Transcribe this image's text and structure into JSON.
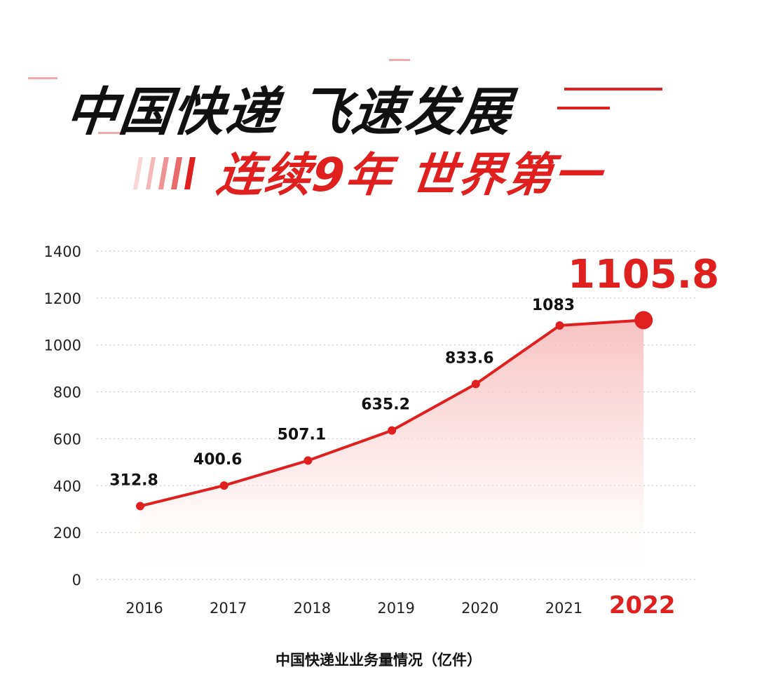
{
  "header": {
    "title": "中国快递 飞速发展",
    "subtitle": "连续9年 世界第一"
  },
  "colors": {
    "accent": "#e0201f",
    "text": "#111111",
    "area_top": "#f7c4c4",
    "grid": "#cfcfcf"
  },
  "chart_data": {
    "type": "area",
    "categories": [
      "2016",
      "2017",
      "2018",
      "2019",
      "2020",
      "2021",
      "2022"
    ],
    "series": [
      {
        "values": [
          312.8,
          400.6,
          507.1,
          635.2,
          833.6,
          1083,
          1105.8
        ]
      }
    ],
    "value_labels": [
      "312.8",
      "400.6",
      "507.1",
      "635.2",
      "833.6",
      "1083",
      "1105.8"
    ],
    "highlight_category": "2022",
    "y_ticks": [
      "0",
      "200",
      "400",
      "600",
      "800",
      "1000",
      "1200",
      "1400"
    ],
    "ylim": [
      0,
      1400
    ],
    "grid": true,
    "xlabel": "中国快递业业务量情况（亿件）"
  }
}
